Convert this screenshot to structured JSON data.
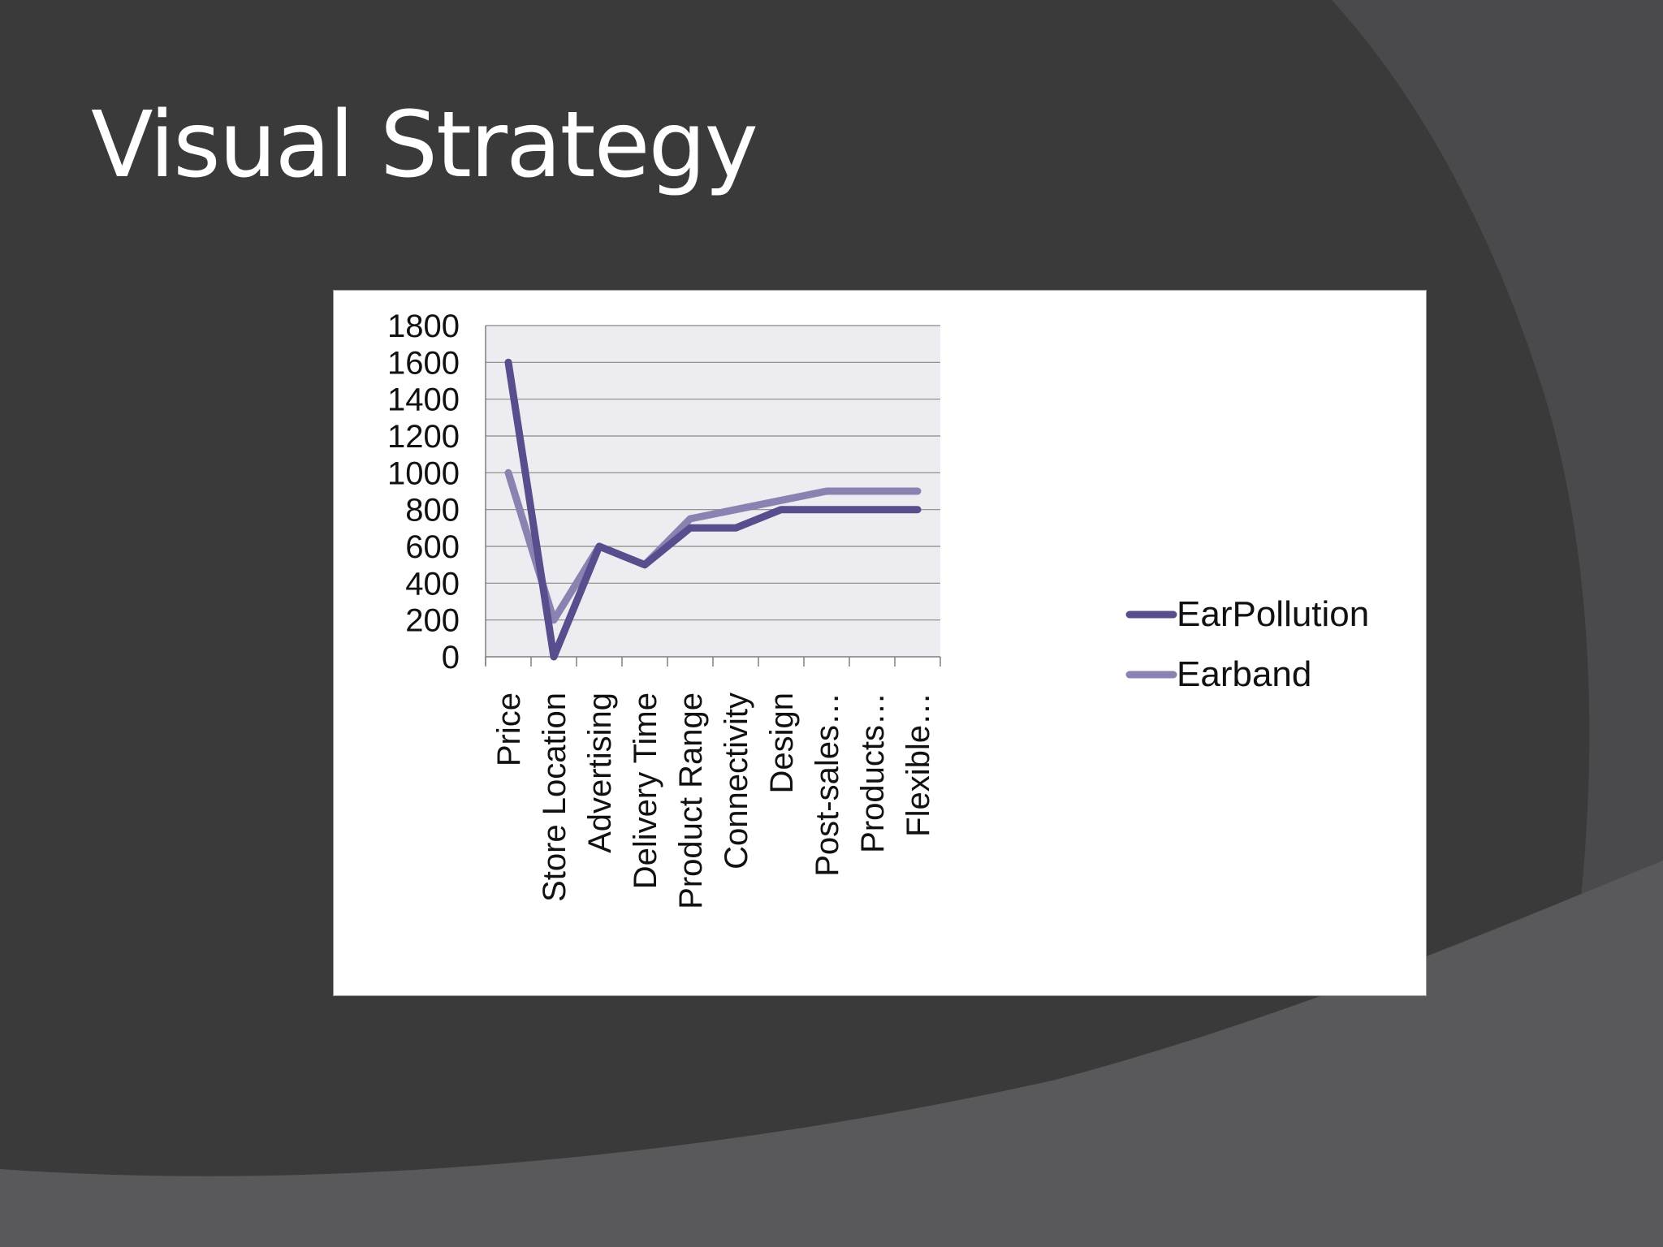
{
  "slide": {
    "title": "Visual Strategy"
  },
  "colors": {
    "background": "#3a3a3b",
    "swoosh_light": "#59595b",
    "swoosh_mid": "#4a4a4c",
    "title_text": "#ffffff",
    "plot_area": "#ededf1",
    "gridline": "#888888"
  },
  "chart_data": {
    "type": "line",
    "categories": [
      "Price",
      "Store Location",
      "Advertising",
      "Delivery Time",
      "Product Range",
      "Connectivity",
      "Design",
      "Post-sales…",
      "Products…",
      "Flexible…"
    ],
    "series": [
      {
        "name": "EarPollution",
        "color": "#584e8e",
        "values": [
          1600,
          0,
          600,
          500,
          700,
          700,
          800,
          800,
          800,
          800
        ]
      },
      {
        "name": "Earband",
        "color": "#8a83b2",
        "values": [
          1000,
          200,
          600,
          500,
          750,
          800,
          850,
          900,
          900,
          900
        ]
      }
    ],
    "y_ticks": [
      "0",
      "200",
      "400",
      "600",
      "800",
      "1000",
      "1200",
      "1400",
      "1600",
      "1800"
    ],
    "ylim": [
      0,
      1800
    ],
    "grid": true,
    "legend_position": "right"
  }
}
